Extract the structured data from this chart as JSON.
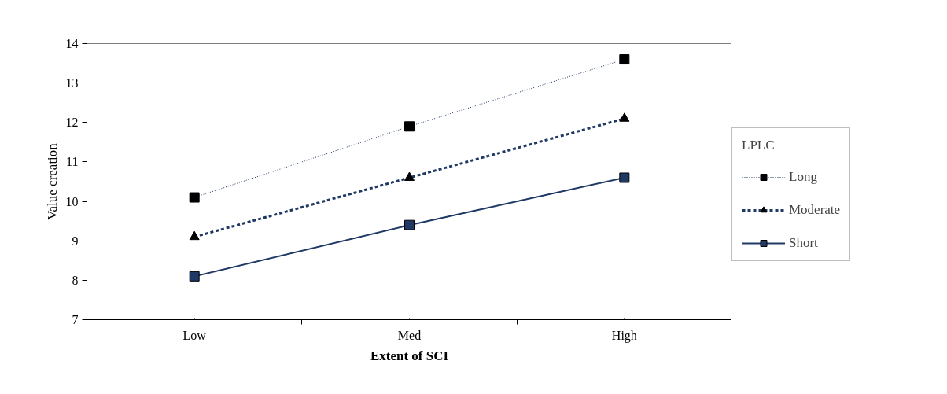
{
  "chart_data": {
    "type": "line",
    "xlabel": "Extent of SCI",
    "ylabel": "Value creation",
    "legend_title": "LPLC",
    "categories": [
      "Low",
      "Med",
      "High"
    ],
    "series": [
      {
        "name": "Long",
        "color": "#1f3864",
        "values": [
          10.1,
          11.9,
          13.6
        ],
        "marker": "square",
        "line_style": "dotted"
      },
      {
        "name": "Moderate",
        "color": "#1f3864",
        "values": [
          9.1,
          10.6,
          12.1
        ],
        "marker": "triangle",
        "line_style": "dashed"
      },
      {
        "name": "Short",
        "color": "#1f3864",
        "values": [
          8.1,
          9.4,
          10.6
        ],
        "marker": "square",
        "line_style": "solid"
      }
    ],
    "ylim": [
      7,
      14
    ],
    "yticks": [
      7,
      8,
      9,
      10,
      11,
      12,
      13,
      14
    ],
    "grid": false,
    "legend": "right"
  }
}
